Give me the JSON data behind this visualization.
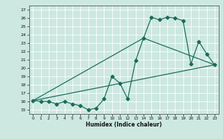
{
  "xlabel": "Humidex (Indice chaleur)",
  "xlim": [
    -0.5,
    23.5
  ],
  "ylim": [
    14.5,
    27.5
  ],
  "yticks": [
    15,
    16,
    17,
    18,
    19,
    20,
    21,
    22,
    23,
    24,
    25,
    26,
    27
  ],
  "xticks": [
    0,
    1,
    2,
    3,
    4,
    5,
    6,
    7,
    8,
    9,
    10,
    11,
    12,
    13,
    14,
    15,
    16,
    17,
    18,
    19,
    20,
    21,
    22,
    23
  ],
  "background_color": "#cce8e0",
  "grid_color": "#ffffff",
  "line_color": "#1a6b5a",
  "line1_x": [
    0,
    1,
    2,
    3,
    4,
    5,
    6,
    7,
    8,
    9,
    10,
    11,
    12,
    13,
    14,
    15,
    16,
    17,
    18,
    19,
    20,
    21,
    22,
    23
  ],
  "line1_y": [
    16.1,
    16.0,
    16.0,
    15.7,
    16.0,
    15.7,
    15.5,
    15.0,
    15.2,
    16.3,
    19.0,
    18.2,
    16.3,
    20.9,
    23.6,
    26.1,
    25.8,
    26.1,
    26.0,
    25.7,
    20.5,
    23.2,
    21.7,
    20.4
  ],
  "line2_x": [
    0,
    23
  ],
  "line2_y": [
    16.1,
    20.4
  ],
  "line3_x": [
    0,
    14,
    23
  ],
  "line3_y": [
    16.1,
    23.6,
    20.4
  ],
  "markersize": 2.5,
  "linewidth": 0.9
}
